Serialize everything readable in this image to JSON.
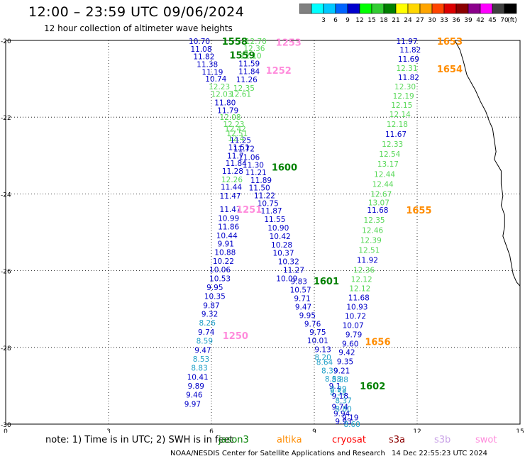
{
  "header": {
    "title": "12:00 – 23:59 UTC 09/06/2024",
    "subtitle": "12 hour collection of altimeter wave heights"
  },
  "legend": {
    "unit": "(ft)",
    "bins": [
      {
        "color": "#808080",
        "label": ""
      },
      {
        "color": "#00ffff",
        "label": "3"
      },
      {
        "color": "#00c8ff",
        "label": "6"
      },
      {
        "color": "#0064ff",
        "label": "9"
      },
      {
        "color": "#0000cd",
        "label": "12"
      },
      {
        "color": "#00ff00",
        "label": "15"
      },
      {
        "color": "#32cd32",
        "label": "18"
      },
      {
        "color": "#008000",
        "label": "21"
      },
      {
        "color": "#ffff00",
        "label": "24"
      },
      {
        "color": "#ffd700",
        "label": "27"
      },
      {
        "color": "#ffa500",
        "label": "30"
      },
      {
        "color": "#ff4500",
        "label": "33"
      },
      {
        "color": "#dc0000",
        "label": "36"
      },
      {
        "color": "#8b0000",
        "label": "39"
      },
      {
        "color": "#8b008b",
        "label": "42"
      },
      {
        "color": "#ff00ff",
        "label": "45"
      },
      {
        "color": "#404040",
        "label": "70"
      },
      {
        "color": "#000000",
        "label": ""
      }
    ]
  },
  "footer": {
    "note": "note:  1) Time is in UTC;  2) SWH is in feet",
    "credit": "NOAA/NESDIS Center for Satellite Applications and Research",
    "timestamp": "14 Dec 22:55:23 UTC 2024",
    "satellites": [
      {
        "name": "jason3",
        "color": "#008000"
      },
      {
        "name": "altika",
        "color": "#ff8c00"
      },
      {
        "name": "cryosat",
        "color": "#ff0000"
      },
      {
        "name": "s3a",
        "color": "#8b0000"
      },
      {
        "name": "s3b",
        "color": "#c8a0e6"
      },
      {
        "name": "swot",
        "color": "#ff8cdc"
      }
    ]
  },
  "chart_data": {
    "type": "scatter",
    "xlim": [
      0,
      15
    ],
    "ylim": [
      -30,
      -20
    ],
    "xticks": [
      "0",
      "3",
      "6",
      "9",
      "12",
      "15"
    ],
    "yticks": [
      "-20",
      "-22",
      "-24",
      "-26",
      "-28",
      "-30"
    ],
    "colors": {
      "navy": "#0000c8",
      "green": "#58d858",
      "teal": "#20a0c8"
    },
    "pass_labels": [
      {
        "text": "1558",
        "x": 6.68,
        "y": -20.02,
        "color": "#008000"
      },
      {
        "text": "1559",
        "x": 6.9,
        "y": -20.38,
        "color": "#008000"
      },
      {
        "text": "1253",
        "x": 8.25,
        "y": -20.05,
        "color": "#ff8cdc"
      },
      {
        "text": "1252",
        "x": 7.96,
        "y": -20.78,
        "color": "#ff8cdc"
      },
      {
        "text": "1600",
        "x": 8.13,
        "y": -23.3,
        "color": "#008000"
      },
      {
        "text": "1251",
        "x": 7.1,
        "y": -24.4,
        "color": "#ff8cdc"
      },
      {
        "text": "1601",
        "x": 9.35,
        "y": -26.27,
        "color": "#008000"
      },
      {
        "text": "1250",
        "x": 6.7,
        "y": -27.69,
        "color": "#ff8cdc"
      },
      {
        "text": "1602",
        "x": 10.7,
        "y": -29.0,
        "color": "#008000"
      },
      {
        "text": "1653",
        "x": 12.95,
        "y": -20.02,
        "color": "#ff8c00"
      },
      {
        "text": "1654",
        "x": 12.95,
        "y": -20.74,
        "color": "#ff8c00"
      },
      {
        "text": "1655",
        "x": 12.05,
        "y": -24.42,
        "color": "#ff8c00"
      },
      {
        "text": "1656",
        "x": 10.85,
        "y": -27.85,
        "color": "#ff8c00"
      }
    ],
    "observations": [
      {
        "v": "10.70",
        "x": 5.65,
        "y": -20.02,
        "c": "navy"
      },
      {
        "v": "11.08",
        "x": 5.7,
        "y": -20.22,
        "c": "navy"
      },
      {
        "v": "11.82",
        "x": 5.78,
        "y": -20.42,
        "c": "navy"
      },
      {
        "v": "11.38",
        "x": 5.88,
        "y": -20.62,
        "c": "navy"
      },
      {
        "v": "11.19",
        "x": 6.03,
        "y": -20.82,
        "c": "navy"
      },
      {
        "v": "10.74",
        "x": 6.13,
        "y": -21.0,
        "c": "navy"
      },
      {
        "v": "12.23",
        "x": 6.23,
        "y": -21.2,
        "c": "green"
      },
      {
        "v": "12.03",
        "x": 6.3,
        "y": -21.4,
        "c": "green"
      },
      {
        "v": "11.80",
        "x": 6.4,
        "y": -21.62,
        "c": "navy"
      },
      {
        "v": "11.79",
        "x": 6.48,
        "y": -21.82,
        "c": "navy"
      },
      {
        "v": "12.08",
        "x": 6.55,
        "y": -22.0,
        "c": "green"
      },
      {
        "v": "12.23",
        "x": 6.65,
        "y": -22.18,
        "c": "green"
      },
      {
        "v": "12.42",
        "x": 6.7,
        "y": -22.3,
        "c": "green"
      },
      {
        "v": "12.51",
        "x": 6.75,
        "y": -22.42,
        "c": "green"
      },
      {
        "v": "12.4",
        "x": 6.72,
        "y": -22.55,
        "c": "green"
      },
      {
        "v": "11.51",
        "x": 6.8,
        "y": -22.78,
        "c": "navy"
      },
      {
        "v": "11.7",
        "x": 6.7,
        "y": -23.0,
        "c": "navy"
      },
      {
        "v": "11.84",
        "x": 6.72,
        "y": -23.2,
        "c": "navy"
      },
      {
        "v": "11.28",
        "x": 6.62,
        "y": -23.4,
        "c": "navy"
      },
      {
        "v": "12.26",
        "x": 6.6,
        "y": -23.62,
        "c": "green"
      },
      {
        "v": "11.44",
        "x": 6.58,
        "y": -23.82,
        "c": "navy"
      },
      {
        "v": "11.47",
        "x": 6.55,
        "y": -24.05,
        "c": "navy"
      },
      {
        "v": "11.47",
        "x": 6.55,
        "y": -24.4,
        "c": "navy"
      },
      {
        "v": "10.99",
        "x": 6.5,
        "y": -24.63,
        "c": "navy"
      },
      {
        "v": "11.86",
        "x": 6.5,
        "y": -24.85,
        "c": "navy"
      },
      {
        "v": "10.44",
        "x": 6.45,
        "y": -25.08,
        "c": "navy"
      },
      {
        "v": "9.91",
        "x": 6.42,
        "y": -25.3,
        "c": "navy"
      },
      {
        "v": "10.88",
        "x": 6.4,
        "y": -25.52,
        "c": "navy"
      },
      {
        "v": "10.22",
        "x": 6.35,
        "y": -25.75,
        "c": "navy"
      },
      {
        "v": "10.06",
        "x": 6.25,
        "y": -25.97,
        "c": "navy"
      },
      {
        "v": "10.53",
        "x": 6.25,
        "y": -26.2,
        "c": "navy"
      },
      {
        "v": "9.95",
        "x": 6.1,
        "y": -26.43,
        "c": "navy"
      },
      {
        "v": "10.35",
        "x": 6.1,
        "y": -26.66,
        "c": "navy"
      },
      {
        "v": "9.87",
        "x": 6.0,
        "y": -26.9,
        "c": "navy"
      },
      {
        "v": "9.32",
        "x": 5.95,
        "y": -27.13,
        "c": "navy"
      },
      {
        "v": "8.26",
        "x": 5.88,
        "y": -27.36,
        "c": "teal"
      },
      {
        "v": "9.74",
        "x": 5.85,
        "y": -27.6,
        "c": "navy"
      },
      {
        "v": "8.59",
        "x": 5.8,
        "y": -27.83,
        "c": "teal"
      },
      {
        "v": "9.47",
        "x": 5.75,
        "y": -28.07,
        "c": "navy"
      },
      {
        "v": "8.53",
        "x": 5.7,
        "y": -28.3,
        "c": "teal"
      },
      {
        "v": "8.83",
        "x": 5.65,
        "y": -28.53,
        "c": "teal"
      },
      {
        "v": "10.41",
        "x": 5.6,
        "y": -28.77,
        "c": "navy"
      },
      {
        "v": "9.89",
        "x": 5.55,
        "y": -29.0,
        "c": "navy"
      },
      {
        "v": "9.46",
        "x": 5.5,
        "y": -29.23,
        "c": "navy"
      },
      {
        "v": "9.97",
        "x": 5.45,
        "y": -29.47,
        "c": "navy"
      },
      {
        "v": "12.70",
        "x": 7.3,
        "y": -20.02,
        "c": "green"
      },
      {
        "v": "12.36",
        "x": 7.25,
        "y": -20.2,
        "c": "green"
      },
      {
        "v": "12.10",
        "x": 7.15,
        "y": -20.4,
        "c": "green"
      },
      {
        "v": "11.59",
        "x": 7.1,
        "y": -20.6,
        "c": "navy"
      },
      {
        "v": "11.84",
        "x": 7.1,
        "y": -20.8,
        "c": "navy"
      },
      {
        "v": "11.26",
        "x": 7.03,
        "y": -21.02,
        "c": "navy"
      },
      {
        "v": "12.35",
        "x": 6.95,
        "y": -21.24,
        "c": "green"
      },
      {
        "v": "12.61",
        "x": 6.85,
        "y": -21.4,
        "c": "green"
      },
      {
        "v": "11.25",
        "x": 6.85,
        "y": -22.6,
        "c": "navy"
      },
      {
        "v": "11.72",
        "x": 6.95,
        "y": -22.82,
        "c": "navy"
      },
      {
        "v": "11.06",
        "x": 7.1,
        "y": -23.04,
        "c": "navy"
      },
      {
        "v": "11.30",
        "x": 7.22,
        "y": -23.24,
        "c": "navy"
      },
      {
        "v": "11.21",
        "x": 7.3,
        "y": -23.44,
        "c": "navy"
      },
      {
        "v": "11.89",
        "x": 7.45,
        "y": -23.64,
        "c": "navy"
      },
      {
        "v": "11.50",
        "x": 7.4,
        "y": -23.84,
        "c": "navy"
      },
      {
        "v": "11.22",
        "x": 7.55,
        "y": -24.04,
        "c": "navy"
      },
      {
        "v": "10.75",
        "x": 7.65,
        "y": -24.24,
        "c": "navy"
      },
      {
        "v": "11.87",
        "x": 7.75,
        "y": -24.44,
        "c": "navy"
      },
      {
        "v": "11.55",
        "x": 7.85,
        "y": -24.66,
        "c": "navy"
      },
      {
        "v": "10.90",
        "x": 7.95,
        "y": -24.88,
        "c": "navy"
      },
      {
        "v": "10.42",
        "x": 8.0,
        "y": -25.1,
        "c": "navy"
      },
      {
        "v": "10.28",
        "x": 8.05,
        "y": -25.32,
        "c": "navy"
      },
      {
        "v": "10.37",
        "x": 8.1,
        "y": -25.54,
        "c": "navy"
      },
      {
        "v": "10.32",
        "x": 8.25,
        "y": -25.76,
        "c": "navy"
      },
      {
        "v": "11.27",
        "x": 8.4,
        "y": -25.98,
        "c": "navy"
      },
      {
        "v": "10.09",
        "x": 8.2,
        "y": -26.2,
        "c": "navy"
      },
      {
        "v": "9.83",
        "x": 8.55,
        "y": -26.28,
        "c": "navy"
      },
      {
        "v": "10.57",
        "x": 8.6,
        "y": -26.5,
        "c": "navy"
      },
      {
        "v": "9.71",
        "x": 8.65,
        "y": -26.72,
        "c": "navy"
      },
      {
        "v": "9.47",
        "x": 8.68,
        "y": -26.94,
        "c": "navy"
      },
      {
        "v": "9.95",
        "x": 8.8,
        "y": -27.16,
        "c": "navy"
      },
      {
        "v": "9.76",
        "x": 8.95,
        "y": -27.38,
        "c": "navy"
      },
      {
        "v": "9.75",
        "x": 9.1,
        "y": -27.6,
        "c": "navy"
      },
      {
        "v": "10.01",
        "x": 9.1,
        "y": -27.82,
        "c": "navy"
      },
      {
        "v": "9.13",
        "x": 9.25,
        "y": -28.05,
        "c": "navy"
      },
      {
        "v": "8.20",
        "x": 9.25,
        "y": -28.25,
        "c": "teal"
      },
      {
        "v": "8.64",
        "x": 9.3,
        "y": -28.38,
        "c": "teal"
      },
      {
        "v": "8.39",
        "x": 9.45,
        "y": -28.6,
        "c": "teal"
      },
      {
        "v": "8.58",
        "x": 9.55,
        "y": -28.82,
        "c": "teal"
      },
      {
        "v": "9.1",
        "x": 9.6,
        "y": -29.0,
        "c": "navy"
      },
      {
        "v": "8.58",
        "x": 9.7,
        "y": -29.18,
        "c": "teal"
      },
      {
        "v": "9.74",
        "x": 9.75,
        "y": -29.55,
        "c": "navy"
      },
      {
        "v": "9.94",
        "x": 9.8,
        "y": -29.72,
        "c": "navy"
      },
      {
        "v": "9.93",
        "x": 9.85,
        "y": -29.93,
        "c": "navy"
      },
      {
        "v": "11.97",
        "x": 11.7,
        "y": -20.02,
        "c": "navy"
      },
      {
        "v": "11.82",
        "x": 11.8,
        "y": -20.24,
        "c": "navy"
      },
      {
        "v": "11.69",
        "x": 11.75,
        "y": -20.48,
        "c": "navy"
      },
      {
        "v": "12.31",
        "x": 11.7,
        "y": -20.72,
        "c": "green"
      },
      {
        "v": "11.82",
        "x": 11.75,
        "y": -20.96,
        "c": "navy"
      },
      {
        "v": "12.30",
        "x": 11.65,
        "y": -21.2,
        "c": "green"
      },
      {
        "v": "12.19",
        "x": 11.6,
        "y": -21.44,
        "c": "green"
      },
      {
        "v": "12.15",
        "x": 11.55,
        "y": -21.68,
        "c": "green"
      },
      {
        "v": "12.14",
        "x": 11.5,
        "y": -21.92,
        "c": "green"
      },
      {
        "v": "12.18",
        "x": 11.42,
        "y": -22.18,
        "c": "green"
      },
      {
        "v": "11.67",
        "x": 11.38,
        "y": -22.44,
        "c": "navy"
      },
      {
        "v": "12.33",
        "x": 11.28,
        "y": -22.7,
        "c": "green"
      },
      {
        "v": "12.54",
        "x": 11.2,
        "y": -22.96,
        "c": "green"
      },
      {
        "v": "13.17",
        "x": 11.15,
        "y": -23.22,
        "c": "green"
      },
      {
        "v": "12.44",
        "x": 11.05,
        "y": -23.48,
        "c": "green"
      },
      {
        "v": "12.44",
        "x": 11.0,
        "y": -23.74,
        "c": "green"
      },
      {
        "v": "12.67",
        "x": 10.95,
        "y": -24.0,
        "c": "green"
      },
      {
        "v": "13.07",
        "x": 10.88,
        "y": -24.22,
        "c": "green"
      },
      {
        "v": "11.68",
        "x": 10.85,
        "y": -24.42,
        "c": "navy"
      },
      {
        "v": "12.35",
        "x": 10.75,
        "y": -24.68,
        "c": "green"
      },
      {
        "v": "12.46",
        "x": 10.7,
        "y": -24.94,
        "c": "green"
      },
      {
        "v": "12.39",
        "x": 10.65,
        "y": -25.2,
        "c": "green"
      },
      {
        "v": "12.51",
        "x": 10.6,
        "y": -25.46,
        "c": "green"
      },
      {
        "v": "11.92",
        "x": 10.55,
        "y": -25.72,
        "c": "navy"
      },
      {
        "v": "12.36",
        "x": 10.45,
        "y": -25.98,
        "c": "green"
      },
      {
        "v": "12.12",
        "x": 10.38,
        "y": -26.22,
        "c": "green"
      },
      {
        "v": "12.12",
        "x": 10.33,
        "y": -26.46,
        "c": "green"
      },
      {
        "v": "11.68",
        "x": 10.3,
        "y": -26.7,
        "c": "navy"
      },
      {
        "v": "10.93",
        "x": 10.25,
        "y": -26.94,
        "c": "navy"
      },
      {
        "v": "10.72",
        "x": 10.2,
        "y": -27.18,
        "c": "navy"
      },
      {
        "v": "10.07",
        "x": 10.13,
        "y": -27.42,
        "c": "navy"
      },
      {
        "v": "9.79",
        "x": 10.15,
        "y": -27.66,
        "c": "navy"
      },
      {
        "v": "9.60",
        "x": 10.05,
        "y": -27.9,
        "c": "navy"
      },
      {
        "v": "9.42",
        "x": 9.95,
        "y": -28.12,
        "c": "navy"
      },
      {
        "v": "9.35",
        "x": 9.9,
        "y": -28.36,
        "c": "navy"
      },
      {
        "v": "9.21",
        "x": 9.8,
        "y": -28.6,
        "c": "navy"
      },
      {
        "v": "8.88",
        "x": 9.75,
        "y": -28.84,
        "c": "teal"
      },
      {
        "v": "8.99",
        "x": 9.7,
        "y": -29.08,
        "c": "teal"
      },
      {
        "v": "9.18",
        "x": 9.75,
        "y": -29.26,
        "c": "navy"
      },
      {
        "v": "8.37",
        "x": 9.85,
        "y": -29.38,
        "c": "teal"
      },
      {
        "v": "8.80",
        "x": 9.85,
        "y": -29.6,
        "c": "teal"
      },
      {
        "v": "9.19",
        "x": 10.05,
        "y": -29.82,
        "c": "navy"
      },
      {
        "v": "8.60",
        "x": 10.1,
        "y": -30.0,
        "c": "teal"
      }
    ],
    "coastline": [
      [
        13.1,
        -20.0
      ],
      [
        13.25,
        -20.25
      ],
      [
        13.35,
        -20.55
      ],
      [
        13.45,
        -20.9
      ],
      [
        13.7,
        -21.3
      ],
      [
        13.85,
        -21.6
      ],
      [
        14.0,
        -21.85
      ],
      [
        14.1,
        -22.1
      ],
      [
        14.2,
        -22.3
      ],
      [
        14.25,
        -22.6
      ],
      [
        14.3,
        -22.9
      ],
      [
        14.25,
        -23.1
      ],
      [
        14.45,
        -23.4
      ],
      [
        14.45,
        -23.75
      ],
      [
        14.5,
        -24.05
      ],
      [
        14.45,
        -24.3
      ],
      [
        14.55,
        -24.55
      ],
      [
        14.55,
        -24.85
      ],
      [
        14.5,
        -25.1
      ],
      [
        14.6,
        -25.35
      ],
      [
        14.7,
        -25.6
      ],
      [
        14.75,
        -25.85
      ],
      [
        14.8,
        -26.1
      ],
      [
        14.9,
        -26.3
      ],
      [
        15.0,
        -26.4
      ]
    ]
  }
}
